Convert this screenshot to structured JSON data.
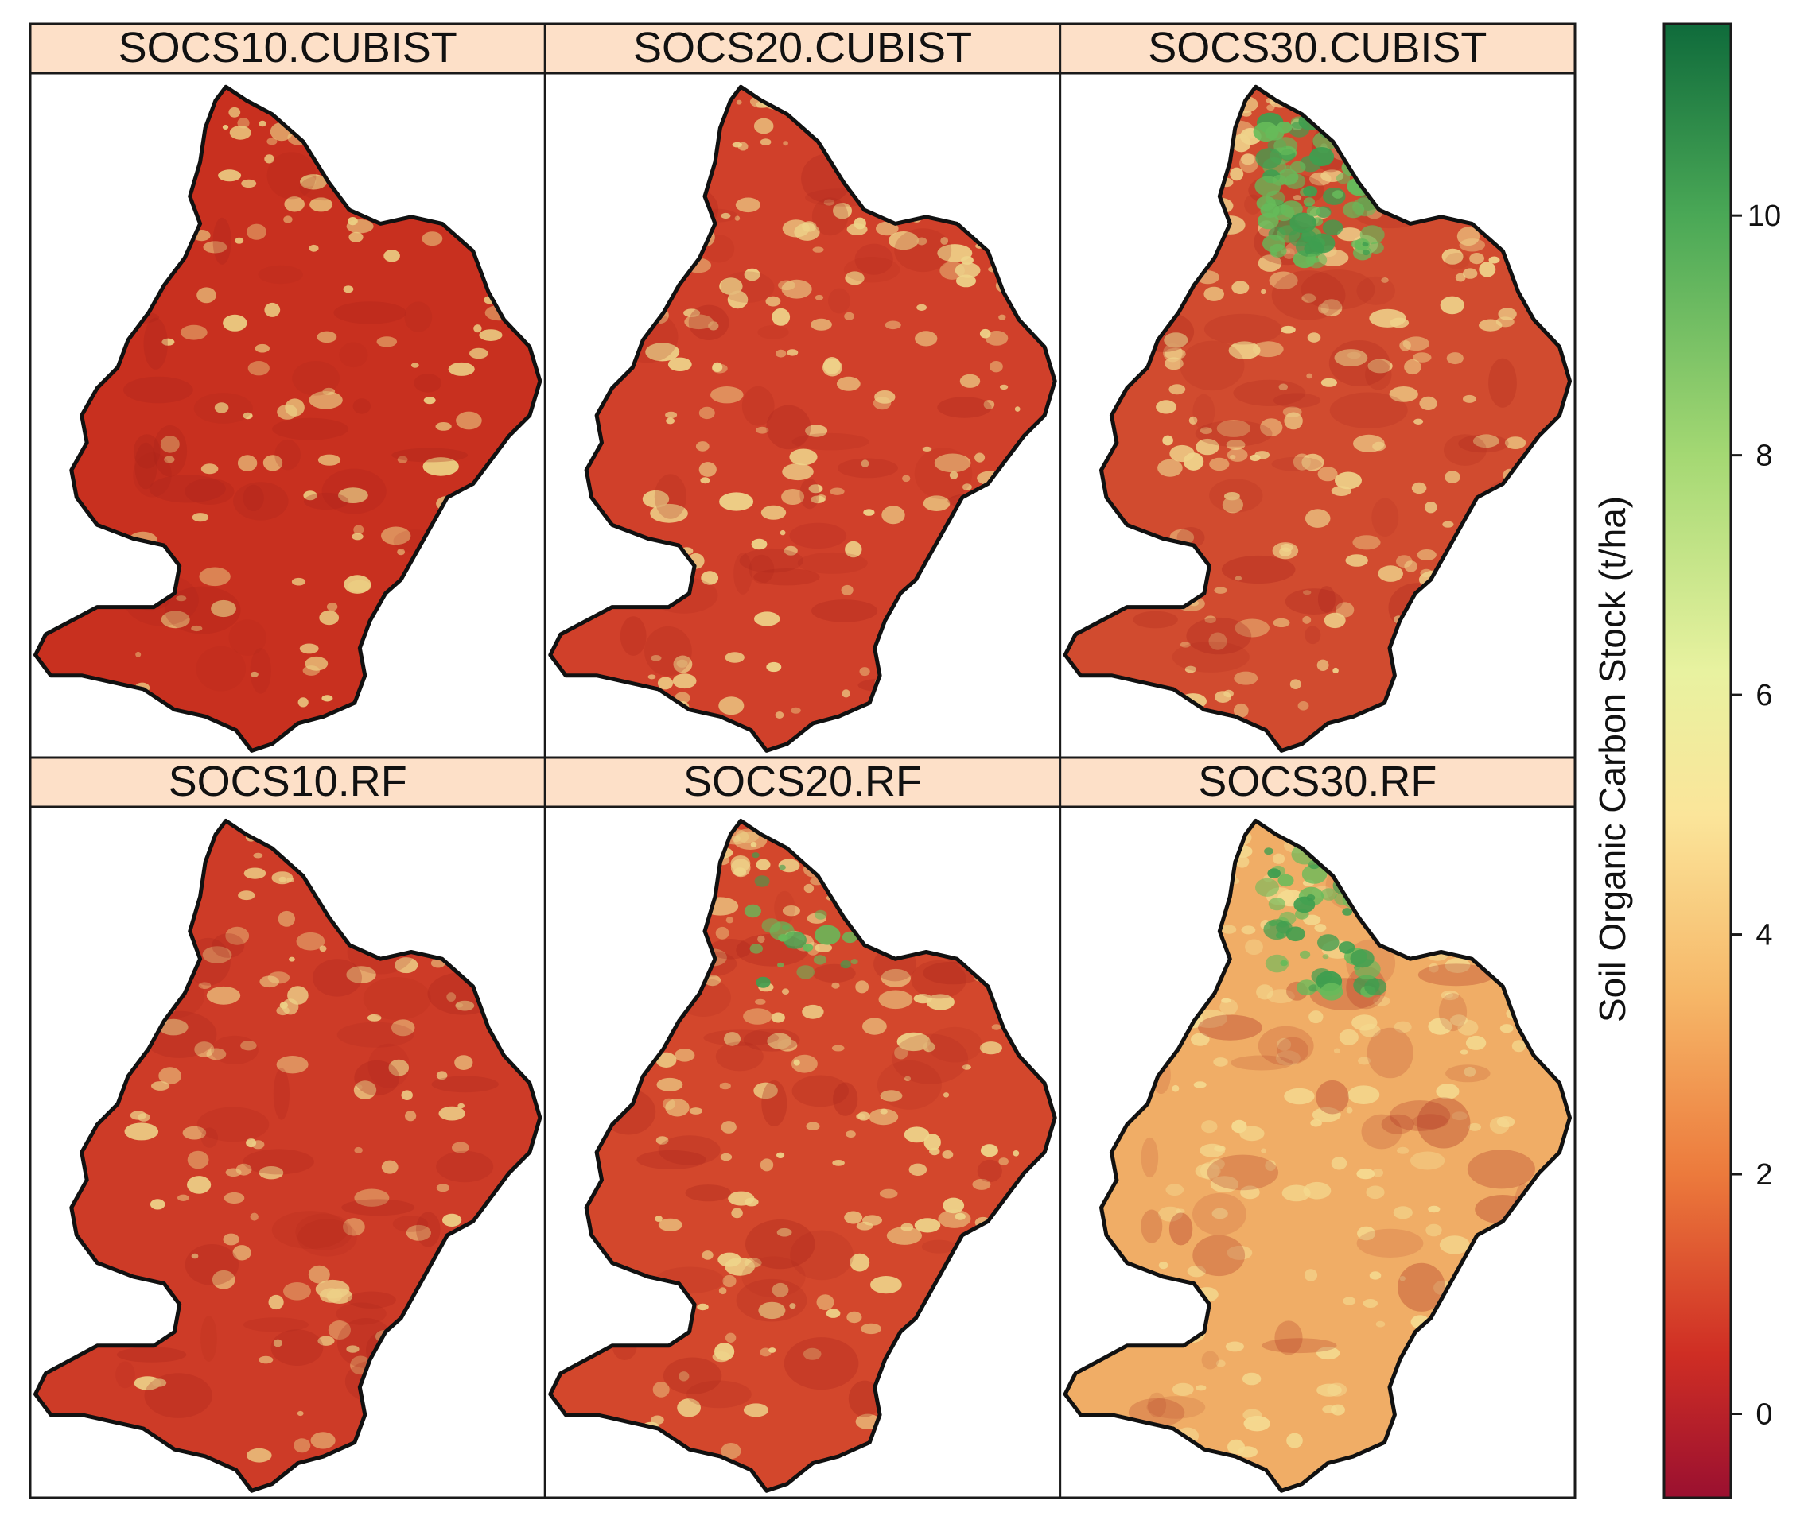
{
  "panels": [
    {
      "title": "SOCS10.CUBIST",
      "base": "#c8301f",
      "light": "#ecd084",
      "green": 0.0,
      "lightAmount": 0.35
    },
    {
      "title": "SOCS20.CUBIST",
      "base": "#d0402a",
      "light": "#eed48a",
      "green": 0.0,
      "lightAmount": 0.5
    },
    {
      "title": "SOCS30.CUBIST",
      "base": "#d14b2f",
      "light": "#efd38b",
      "green": 0.55,
      "lightAmount": 0.55
    },
    {
      "title": "SOCS10.RF",
      "base": "#cd3b27",
      "light": "#edd087",
      "green": 0.0,
      "lightAmount": 0.35
    },
    {
      "title": "SOCS20.RF",
      "base": "#d3472c",
      "light": "#eed48a",
      "green": 0.15,
      "lightAmount": 0.5
    },
    {
      "title": "SOCS30.RF",
      "base": "#f0ad66",
      "light": "#f4da90",
      "green": 0.3,
      "lightAmount": 0.45
    }
  ],
  "colorbar": {
    "title": "Soil Organic Carbon Stock (t/ha)",
    "min": -0.7,
    "max": 11.6,
    "ticks": [
      0,
      2,
      4,
      6,
      8,
      10
    ],
    "stops": [
      {
        "value": -0.7,
        "color": "#9a1030"
      },
      {
        "value": 0.5,
        "color": "#cf2e24"
      },
      {
        "value": 2.0,
        "color": "#ec7a3c"
      },
      {
        "value": 3.5,
        "color": "#f6b768"
      },
      {
        "value": 5.0,
        "color": "#fbe59a"
      },
      {
        "value": 6.2,
        "color": "#e8f2a0"
      },
      {
        "value": 8.0,
        "color": "#a4d873"
      },
      {
        "value": 10.0,
        "color": "#4aa856"
      },
      {
        "value": 11.6,
        "color": "#0f6b3b"
      }
    ]
  },
  "colors": {
    "strip": "#fde0c8",
    "border": "#1a1a1a",
    "green": "#66bb5a"
  }
}
